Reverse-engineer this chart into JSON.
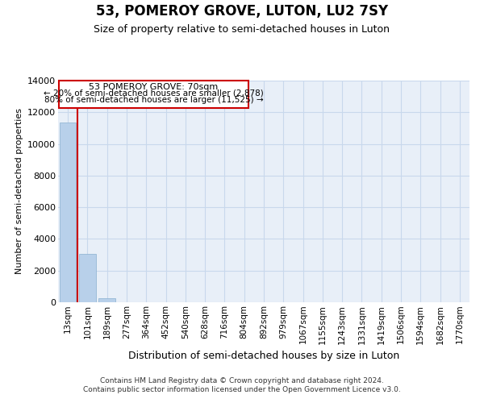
{
  "title": "53, POMEROY GROVE, LUTON, LU2 7SY",
  "subtitle": "Size of property relative to semi-detached houses in Luton",
  "xlabel": "Distribution of semi-detached houses by size in Luton",
  "ylabel": "Number of semi-detached properties",
  "property_size": 70,
  "property_label": "53 POMEROY GROVE: 70sqm",
  "pct_smaller": 20,
  "count_smaller": 2878,
  "pct_larger": 80,
  "count_larger": 11525,
  "bar_categories": [
    "13sqm",
    "101sqm",
    "189sqm",
    "277sqm",
    "364sqm",
    "452sqm",
    "540sqm",
    "628sqm",
    "716sqm",
    "804sqm",
    "892sqm",
    "979sqm",
    "1067sqm",
    "1155sqm",
    "1243sqm",
    "1331sqm",
    "1419sqm",
    "1506sqm",
    "1594sqm",
    "1682sqm",
    "1770sqm"
  ],
  "bar_values": [
    11350,
    3050,
    230,
    15,
    5,
    3,
    2,
    1,
    1,
    1,
    1,
    1,
    1,
    0,
    0,
    0,
    0,
    0,
    0,
    0,
    0
  ],
  "bar_color": "#b8d0ea",
  "bar_edge_color": "#8ab0d0",
  "grid_color": "#c8d8ec",
  "background_color": "#e8eff8",
  "annotation_box_color": "#cc0000",
  "property_line_color": "#cc0000",
  "ylim": [
    0,
    14000
  ],
  "footer_line1": "Contains HM Land Registry data © Crown copyright and database right 2024.",
  "footer_line2": "Contains public sector information licensed under the Open Government Licence v3.0."
}
